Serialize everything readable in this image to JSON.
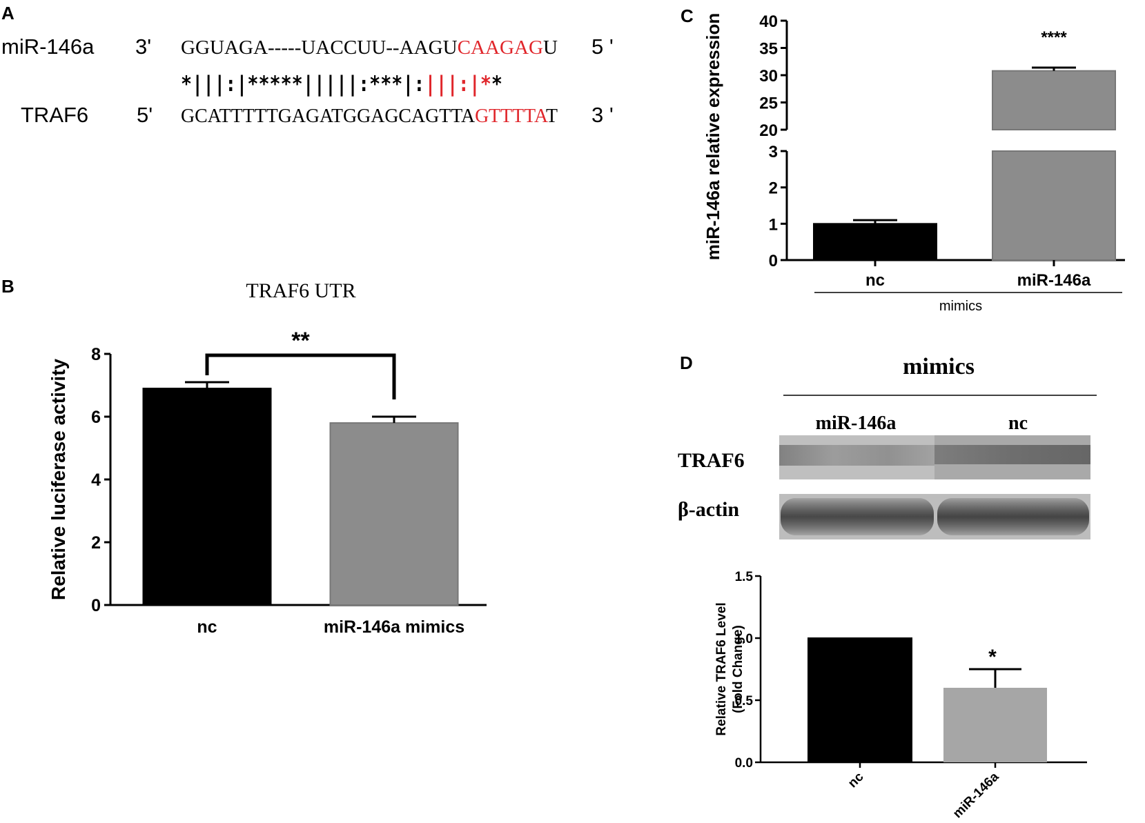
{
  "panel_labels": {
    "a": "A",
    "b": "B",
    "c": "C",
    "d": "D"
  },
  "colors": {
    "black": "#000000",
    "gray_bar": "#8c8c8c",
    "light_gray_bar": "#a6a6a6",
    "highlight_red": "#e0262b"
  },
  "panel_a": {
    "rows": [
      {
        "name": "miR-146a",
        "start": "3'",
        "end": "5 '",
        "segments": [
          {
            "text": "GGUAGA-----UACCUU--AAGU",
            "highlight": false
          },
          {
            "text": "CAAGAG",
            "highlight": true
          },
          {
            "text": "U",
            "highlight": false
          }
        ]
      },
      {
        "name": "TRAF6",
        "start": "5'",
        "end": "3 '",
        "segments": [
          {
            "text": "GCATTTTTGAGATGGAGCAGTTA",
            "highlight": false
          },
          {
            "text": "GTTTTA",
            "highlight": true
          },
          {
            "text": "T",
            "highlight": false
          }
        ]
      }
    ],
    "match_line": [
      {
        "text": "*|||:|*****|||||:***|:",
        "highlight": false
      },
      {
        "text": "|||:|*",
        "highlight": true
      },
      {
        "text": "*",
        "highlight": false
      }
    ]
  },
  "chart_data": [
    {
      "panel": "B",
      "type": "bar",
      "title": "TRAF6 UTR",
      "xlabel": "",
      "ylabel": "Relative luciferase activity",
      "categories": [
        "nc",
        "miR-146a mimics"
      ],
      "values": [
        6.9,
        5.8
      ],
      "errors": [
        0.2,
        0.2
      ],
      "colors": [
        "#000000",
        "#8c8c8c"
      ],
      "ylim": [
        0,
        8
      ],
      "yticks": [
        "0",
        "2",
        "4",
        "6",
        "8"
      ],
      "significance": {
        "between": [
          0,
          1
        ],
        "label": "**"
      }
    },
    {
      "panel": "C",
      "type": "bar",
      "xlabel": "mimics",
      "ylabel": "miR-146a relative expression",
      "categories": [
        "nc",
        "miR-146a"
      ],
      "values": [
        1.0,
        30.8
      ],
      "errors": [
        0.1,
        0.6
      ],
      "colors": [
        "#000000",
        "#8c8c8c"
      ],
      "broken_axis": {
        "lower": [
          0,
          3
        ],
        "upper": [
          20,
          40
        ]
      },
      "yticks_lower": [
        "0",
        "1",
        "2",
        "3"
      ],
      "yticks_upper": [
        "20",
        "25",
        "30",
        "35",
        "40"
      ],
      "annotations": [
        {
          "bar": 1,
          "label": "****"
        }
      ]
    },
    {
      "panel": "D",
      "type": "bar",
      "xlabel": "",
      "ylabel": "Relative TRAF6 Level (Fold Change)",
      "ylabel_lines": [
        "Relative TRAF6 Level",
        "(Fold Change)"
      ],
      "categories": [
        "nc",
        "miR-146a"
      ],
      "values": [
        1.0,
        0.6
      ],
      "errors": [
        0.0,
        0.15
      ],
      "colors": [
        "#000000",
        "#a6a6a6"
      ],
      "ylim": [
        0,
        1.5
      ],
      "yticks": [
        "0.0",
        "0.5",
        "1.0",
        "1.5"
      ],
      "annotations": [
        {
          "bar": 1,
          "label": "*"
        }
      ]
    }
  ],
  "panel_d_blot": {
    "header": "mimics",
    "lanes": [
      "miR-146a",
      "nc"
    ],
    "rows": [
      "TRAF6",
      "β-actin"
    ]
  }
}
